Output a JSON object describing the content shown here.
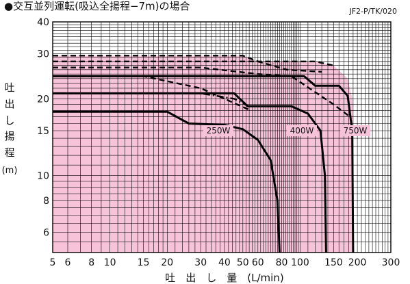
{
  "chart_data": {
    "type": "line",
    "title": "●交互並列運転(吸込全揚程−7m)の場合",
    "code": "JF2-P/TK/020",
    "xlabel": "吐　出　し　量　(L/min)",
    "ylabel_chars": [
      "吐",
      "出",
      "し",
      "揚",
      "程",
      "(m)"
    ],
    "x_scale": "log",
    "y_scale": "log",
    "xlim": [
      5,
      300
    ],
    "ylim": [
      5,
      40
    ],
    "x_ticks": [
      5,
      6,
      8,
      10,
      15,
      20,
      30,
      40,
      50,
      60,
      80,
      100,
      150,
      200,
      300
    ],
    "x_tick_labels": [
      "5",
      "6",
      "8",
      "10",
      "15",
      "20",
      "30",
      "40",
      "50",
      "60",
      "80",
      "100",
      "150",
      "200",
      "300"
    ],
    "y_ticks": [
      6,
      8,
      10,
      15,
      20,
      30,
      40
    ],
    "y_tick_labels": [
      "6",
      "8",
      "10",
      "15",
      "20",
      "30",
      "40"
    ],
    "grid": true,
    "colors": {
      "fill": "#f7c3d8",
      "grid": "#000000",
      "curve": "#000000"
    },
    "series": [
      {
        "name": "250W",
        "style": "solid",
        "points": [
          [
            5,
            17.8
          ],
          [
            20,
            17.8
          ],
          [
            26,
            16
          ],
          [
            40,
            15.8
          ],
          [
            50,
            15.2
          ],
          [
            60,
            13.8
          ],
          [
            70,
            11.5
          ],
          [
            76,
            8
          ],
          [
            78,
            5
          ]
        ]
      },
      {
        "name": "400W",
        "style": "solid",
        "points": [
          [
            5,
            21
          ],
          [
            45,
            21
          ],
          [
            53,
            18.7
          ],
          [
            90,
            18.7
          ],
          [
            110,
            17.5
          ],
          [
            128,
            15
          ],
          [
            135,
            10
          ],
          [
            137,
            5
          ]
        ]
      },
      {
        "name": "750W",
        "style": "solid",
        "points": [
          [
            5,
            24.5
          ],
          [
            105,
            24.5
          ],
          [
            120,
            22.5
          ],
          [
            160,
            22.5
          ],
          [
            178,
            20.5
          ],
          [
            188,
            15
          ],
          [
            190,
            5
          ]
        ]
      },
      {
        "style": "dashdot",
        "points": [
          [
            5,
            21
          ],
          [
            30,
            21
          ],
          [
            45,
            20
          ],
          [
            55,
            18.5
          ]
        ]
      },
      {
        "style": "dashed",
        "points": [
          [
            5,
            24.5
          ],
          [
            15,
            24.5
          ],
          [
            30,
            22
          ],
          [
            55,
            18
          ]
        ]
      },
      {
        "style": "dashed",
        "points": [
          [
            5,
            26.5
          ],
          [
            30,
            26.5
          ],
          [
            60,
            25
          ],
          [
            90,
            24.5
          ],
          [
            150,
            19
          ],
          [
            183,
            17
          ]
        ]
      },
      {
        "style": "dashed",
        "points": [
          [
            5,
            28
          ],
          [
            60,
            28
          ],
          [
            85,
            26
          ],
          [
            130,
            25.5
          ]
        ]
      },
      {
        "style": "dashed",
        "points": [
          [
            5,
            29.5
          ],
          [
            50,
            29.5
          ],
          [
            60,
            28
          ],
          [
            120,
            28
          ],
          [
            150,
            27
          ]
        ]
      }
    ],
    "fill_region": {
      "points": [
        [
          5,
          29.5
        ],
        [
          50,
          29.5
        ],
        [
          60,
          28
        ],
        [
          120,
          28
        ],
        [
          150,
          27
        ],
        [
          178,
          24
        ],
        [
          188,
          20
        ],
        [
          190,
          15
        ],
        [
          191,
          10
        ],
        [
          192,
          5
        ],
        [
          5,
          5
        ]
      ]
    },
    "series_labels": [
      {
        "text": "250W",
        "x": 32,
        "y": 15
      },
      {
        "text": "400W",
        "x": 88,
        "y": 15
      },
      {
        "text": "750W",
        "x": 168,
        "y": 15
      }
    ]
  }
}
